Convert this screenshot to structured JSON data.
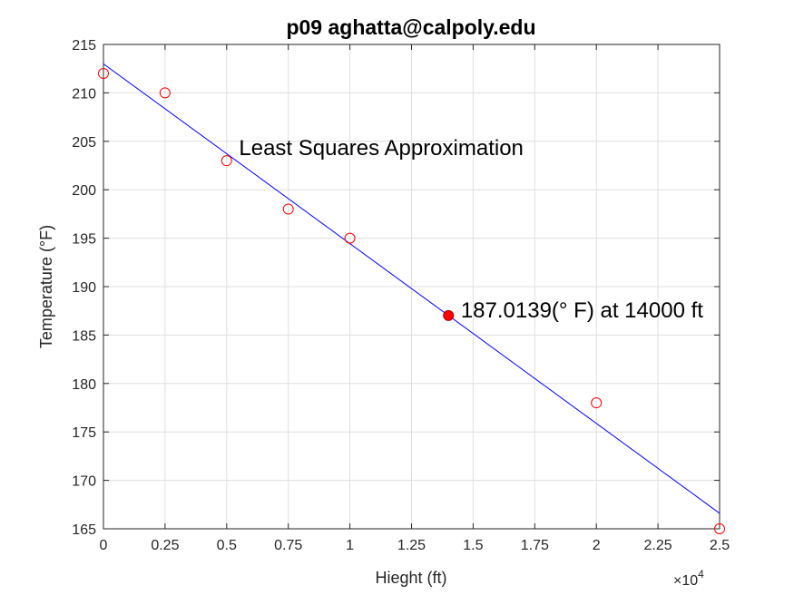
{
  "chart_data": {
    "type": "scatter",
    "title": "p09 aghatta@calpoly.edu",
    "xlabel": "Hieght (ft)",
    "ylabel": "Temperature (°F)",
    "x_exponent_label": "×10",
    "x_exponent_power": "4",
    "xlim": [
      0,
      25000
    ],
    "ylim": [
      165,
      215
    ],
    "xticks": [
      0,
      2500,
      5000,
      7500,
      10000,
      12500,
      15000,
      17500,
      20000,
      22500,
      25000
    ],
    "xtick_labels": [
      "0",
      "0.25",
      "0.5",
      "0.75",
      "1",
      "1.25",
      "1.5",
      "1.75",
      "2",
      "2.25",
      "2.5"
    ],
    "yticks": [
      165,
      170,
      175,
      180,
      185,
      190,
      195,
      200,
      205,
      210,
      215
    ],
    "ytick_labels": [
      "165",
      "170",
      "175",
      "180",
      "185",
      "190",
      "195",
      "200",
      "205",
      "210",
      "215"
    ],
    "grid": true,
    "series": [
      {
        "kind": "markers",
        "marker": "open-circle",
        "color": "#ff0000",
        "x": [
          0,
          2500,
          5000,
          7500,
          10000,
          20000,
          25000
        ],
        "y": [
          212,
          210,
          203,
          198,
          195,
          178,
          165
        ]
      },
      {
        "kind": "line",
        "color": "#0000ff",
        "x": [
          0,
          25000
        ],
        "y": [
          213.0,
          166.6
        ]
      },
      {
        "kind": "highlight",
        "marker": "filled-circle",
        "color": "#ff0000",
        "edge_color": "#b00000",
        "x": [
          14000
        ],
        "y": [
          187.0139
        ]
      }
    ],
    "annotations": [
      {
        "text": "Least Squares Approximation",
        "x": 5500,
        "y": 203.6
      },
      {
        "text": "187.0139(° F) at 14000 ft",
        "x": 14500,
        "y": 186.8
      }
    ]
  }
}
